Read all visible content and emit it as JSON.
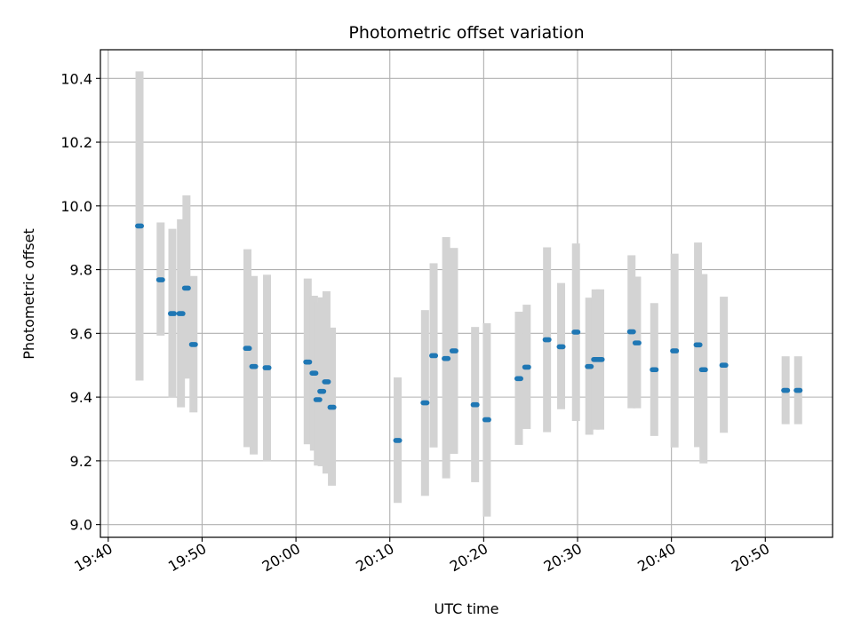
{
  "chart_data": {
    "type": "scatter",
    "title": "Photometric offset variation",
    "xlabel": "UTC time",
    "ylabel": "Photometric offset",
    "xlim": [
      "19:39:10",
      "20:57:10"
    ],
    "ylim": [
      8.96,
      10.49
    ],
    "x_ticks": [
      "19:40",
      "19:50",
      "20:00",
      "20:10",
      "20:20",
      "20:30",
      "20:40",
      "20:50"
    ],
    "y_ticks": [
      9.0,
      9.2,
      9.4,
      9.6,
      9.8,
      10.0,
      10.2,
      10.4
    ],
    "grid": true,
    "errorbar_color": "#d3d3d3",
    "marker_color": "#1f77b4",
    "points": [
      {
        "t": "19:43:20",
        "y": 9.937,
        "ymin": 9.452,
        "ymax": 10.422
      },
      {
        "t": "19:45:35",
        "y": 9.768,
        "ymin": 9.593,
        "ymax": 9.948
      },
      {
        "t": "19:46:50",
        "y": 9.662,
        "ymin": 9.398,
        "ymax": 9.928
      },
      {
        "t": "19:47:45",
        "y": 9.662,
        "ymin": 9.368,
        "ymax": 9.958
      },
      {
        "t": "19:48:20",
        "y": 9.742,
        "ymin": 9.458,
        "ymax": 10.033
      },
      {
        "t": "19:49:05",
        "y": 9.565,
        "ymin": 9.352,
        "ymax": 9.78
      },
      {
        "t": "19:54:50",
        "y": 9.553,
        "ymin": 9.243,
        "ymax": 9.864
      },
      {
        "t": "19:55:30",
        "y": 9.496,
        "ymin": 9.22,
        "ymax": 9.78
      },
      {
        "t": "19:56:55",
        "y": 9.492,
        "ymin": 9.198,
        "ymax": 9.784
      },
      {
        "t": "20:01:15",
        "y": 9.51,
        "ymin": 9.252,
        "ymax": 9.772
      },
      {
        "t": "20:01:55",
        "y": 9.475,
        "ymin": 9.232,
        "ymax": 9.718
      },
      {
        "t": "20:02:20",
        "y": 9.392,
        "ymin": 9.185,
        "ymax": 9.698
      },
      {
        "t": "20:02:45",
        "y": 9.418,
        "ymin": 9.183,
        "ymax": 9.713
      },
      {
        "t": "20:03:15",
        "y": 9.448,
        "ymin": 9.16,
        "ymax": 9.732
      },
      {
        "t": "20:03:50",
        "y": 9.368,
        "ymin": 9.122,
        "ymax": 9.618
      },
      {
        "t": "20:10:50",
        "y": 9.264,
        "ymin": 9.068,
        "ymax": 9.462
      },
      {
        "t": "20:13:45",
        "y": 9.382,
        "ymin": 9.09,
        "ymax": 9.673
      },
      {
        "t": "20:14:40",
        "y": 9.53,
        "ymin": 9.242,
        "ymax": 9.82
      },
      {
        "t": "20:16:00",
        "y": 9.521,
        "ymin": 9.145,
        "ymax": 9.902
      },
      {
        "t": "20:16:50",
        "y": 9.545,
        "ymin": 9.222,
        "ymax": 9.868
      },
      {
        "t": "20:19:05",
        "y": 9.376,
        "ymin": 9.133,
        "ymax": 9.62
      },
      {
        "t": "20:20:20",
        "y": 9.329,
        "ymin": 9.025,
        "ymax": 9.632
      },
      {
        "t": "20:23:45",
        "y": 9.458,
        "ymin": 9.25,
        "ymax": 9.668
      },
      {
        "t": "20:24:35",
        "y": 9.494,
        "ymin": 9.3,
        "ymax": 9.69
      },
      {
        "t": "20:26:45",
        "y": 9.58,
        "ymin": 9.29,
        "ymax": 9.87
      },
      {
        "t": "20:28:15",
        "y": 9.558,
        "ymin": 9.362,
        "ymax": 9.758
      },
      {
        "t": "20:29:50",
        "y": 9.604,
        "ymin": 9.325,
        "ymax": 9.882
      },
      {
        "t": "20:31:15",
        "y": 9.496,
        "ymin": 9.282,
        "ymax": 9.712
      },
      {
        "t": "20:31:55",
        "y": 9.518,
        "ymin": 9.298,
        "ymax": 9.738
      },
      {
        "t": "20:32:25",
        "y": 9.518,
        "ymin": 9.298,
        "ymax": 9.738
      },
      {
        "t": "20:35:45",
        "y": 9.605,
        "ymin": 9.365,
        "ymax": 9.845
      },
      {
        "t": "20:36:20",
        "y": 9.57,
        "ymin": 9.365,
        "ymax": 9.778
      },
      {
        "t": "20:38:10",
        "y": 9.486,
        "ymin": 9.278,
        "ymax": 9.695
      },
      {
        "t": "20:40:20",
        "y": 9.545,
        "ymin": 9.242,
        "ymax": 9.85
      },
      {
        "t": "20:42:50",
        "y": 9.564,
        "ymin": 9.243,
        "ymax": 9.885
      },
      {
        "t": "20:43:25",
        "y": 9.486,
        "ymin": 9.192,
        "ymax": 9.786
      },
      {
        "t": "20:45:35",
        "y": 9.5,
        "ymin": 9.288,
        "ymax": 9.715
      },
      {
        "t": "20:52:10",
        "y": 9.421,
        "ymin": 9.315,
        "ymax": 9.528
      },
      {
        "t": "20:53:30",
        "y": 9.421,
        "ymin": 9.315,
        "ymax": 9.528
      }
    ]
  }
}
